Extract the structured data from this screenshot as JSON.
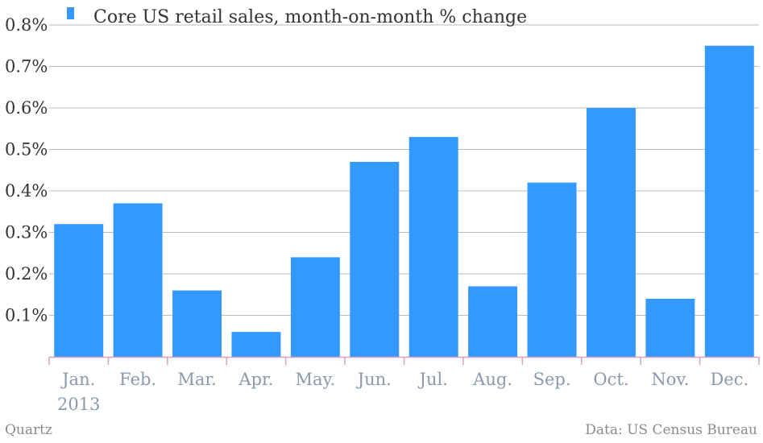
{
  "chart_data": {
    "type": "bar",
    "categories": [
      "Jan.",
      "Feb.",
      "Mar.",
      "Apr.",
      "May.",
      "Jun.",
      "Jul.",
      "Aug.",
      "Sep.",
      "Oct.",
      "Nov.",
      "Dec."
    ],
    "year_label": "2013",
    "series": [
      {
        "name": "Core US retail sales, month-on-month % change",
        "values": [
          0.32,
          0.37,
          0.16,
          0.06,
          0.24,
          0.47,
          0.53,
          0.17,
          0.42,
          0.6,
          0.14,
          0.75
        ],
        "color": "#3399ff"
      }
    ],
    "ylim": [
      0,
      0.8
    ],
    "yticks": [
      0.1,
      0.2,
      0.3,
      0.4,
      0.5,
      0.6,
      0.7,
      0.8
    ],
    "ytick_labels": [
      "0.1%",
      "0.2%",
      "0.3%",
      "0.4%",
      "0.5%",
      "0.6%",
      "0.7%",
      "0.8%"
    ],
    "grid": true,
    "legend_position": "top-left"
  },
  "footer": {
    "source_left": "Quartz",
    "source_right": "Data: US Census Bureau"
  },
  "colors": {
    "bar": "#3399ff",
    "grid": "#bbbbbb",
    "axis": "#d9a0c0"
  }
}
